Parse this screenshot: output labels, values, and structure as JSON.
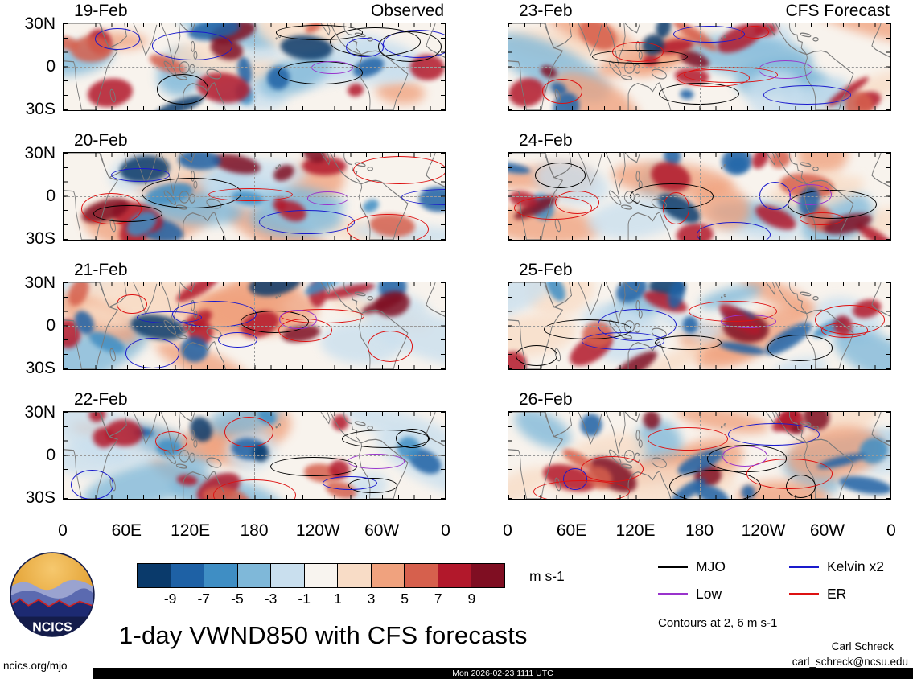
{
  "title": "1-day VWND850 with CFS forecasts",
  "columns": [
    {
      "title": "Observed"
    },
    {
      "title": "CFS Forecast"
    }
  ],
  "panels": [
    {
      "date": "19-Feb"
    },
    {
      "date": "20-Feb"
    },
    {
      "date": "21-Feb"
    },
    {
      "date": "22-Feb"
    },
    {
      "date": "23-Feb"
    },
    {
      "date": "24-Feb"
    },
    {
      "date": "25-Feb"
    },
    {
      "date": "26-Feb"
    }
  ],
  "axes": {
    "y_ticks": [
      "30N",
      "0",
      "30S"
    ],
    "x_ticks": [
      "0",
      "60E",
      "120E",
      "180",
      "120W",
      "60W",
      "0"
    ]
  },
  "colorbar": {
    "labels": [
      "-9",
      "-7",
      "-5",
      "-3",
      "-1",
      "1",
      "3",
      "5",
      "7",
      "9"
    ],
    "colors": [
      "#0a3a6b",
      "#1e61a5",
      "#3f8ec4",
      "#7fb8d9",
      "#c9dfee",
      "#f8f4ef",
      "#f8dcc6",
      "#f0a27e",
      "#d6604d",
      "#b2182b",
      "#7f0e22"
    ],
    "units": "m s-1"
  },
  "legend": {
    "items": [
      {
        "label": "MJO",
        "color": "#000000"
      },
      {
        "label": "Kelvin x2",
        "color": "#1a1acc"
      },
      {
        "label": "Low",
        "color": "#9933cc"
      },
      {
        "label": "ER",
        "color": "#dd1111"
      }
    ],
    "note": "Contours at 2, 6 m s-1"
  },
  "logo": {
    "text": "NCICS"
  },
  "credits": {
    "author": "Carl Schreck",
    "email": "carl_schreck@ncsu.edu",
    "site": "ncics.org/mjo",
    "timestamp": "Mon 2026-02-23 1111 UTC"
  },
  "chart_data": {
    "type": "heatmap",
    "title": "1-day VWND850 with CFS forecasts",
    "description": "Eight longitude-latitude panels of 850 hPa meridional wind anomaly (filled) with equatorial wave contours overlaid; left column observed, right column CFS forecast.",
    "panels": [
      {
        "date": "19-Feb",
        "source": "Observed"
      },
      {
        "date": "20-Feb",
        "source": "Observed"
      },
      {
        "date": "21-Feb",
        "source": "Observed"
      },
      {
        "date": "22-Feb",
        "source": "Observed"
      },
      {
        "date": "23-Feb",
        "source": "CFS Forecast"
      },
      {
        "date": "24-Feb",
        "source": "CFS Forecast"
      },
      {
        "date": "25-Feb",
        "source": "CFS Forecast"
      },
      {
        "date": "26-Feb",
        "source": "CFS Forecast"
      }
    ],
    "x": {
      "label": "longitude",
      "ticks": [
        "0",
        "60E",
        "120E",
        "180",
        "120W",
        "60W",
        "0"
      ],
      "range_deg": [
        0,
        360
      ]
    },
    "y": {
      "label": "latitude",
      "ticks": [
        "30N",
        "0",
        "30S"
      ],
      "range_deg": [
        -30,
        30
      ]
    },
    "fill_variable": "VWND850 anomaly",
    "fill_levels": [
      -9,
      -7,
      -5,
      -3,
      -1,
      1,
      3,
      5,
      7,
      9
    ],
    "fill_units": "m s-1",
    "colormap": [
      "#0a3a6b",
      "#1e61a5",
      "#3f8ec4",
      "#7fb8d9",
      "#c9dfee",
      "#f8f4ef",
      "#f8dcc6",
      "#f0a27e",
      "#d6604d",
      "#b2182b",
      "#7f0e22"
    ],
    "contour_overlays": [
      {
        "name": "MJO",
        "color": "black"
      },
      {
        "name": "Kelvin x2",
        "color": "blue"
      },
      {
        "name": "Low",
        "color": "purple"
      },
      {
        "name": "ER",
        "color": "red"
      }
    ],
    "contour_levels": [
      2,
      6
    ],
    "grid": "dashed reference lines at equator and 180",
    "legend_position": "bottom-right"
  }
}
